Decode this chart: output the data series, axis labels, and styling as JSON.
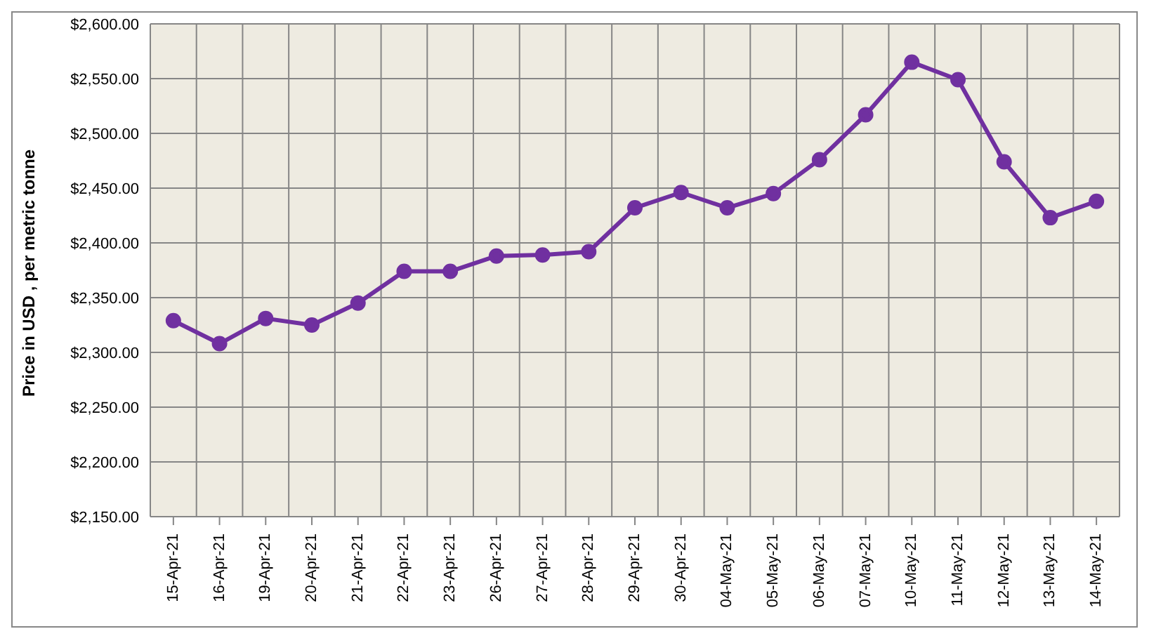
{
  "chart_data": {
    "type": "line",
    "ylabel": "Price in USD , per metric tonne",
    "categories": [
      "15-Apr-21",
      "16-Apr-21",
      "19-Apr-21",
      "20-Apr-21",
      "21-Apr-21",
      "22-Apr-21",
      "23-Apr-21",
      "26-Apr-21",
      "27-Apr-21",
      "28-Apr-21",
      "29-Apr-21",
      "30-Apr-21",
      "04-May-21",
      "05-May-21",
      "06-May-21",
      "07-May-21",
      "10-May-21",
      "11-May-21",
      "12-May-21",
      "13-May-21",
      "14-May-21"
    ],
    "series": [
      {
        "color": "#7030a0",
        "values": [
          2329,
          2308,
          2331,
          2325,
          2345,
          2374,
          2374,
          2388,
          2389,
          2392,
          2432,
          2446,
          2432,
          2445,
          2476,
          2517,
          2565,
          2549,
          2474,
          2423,
          2438
        ]
      }
    ],
    "ylim": [
      2150,
      2600
    ],
    "yticks": [
      {
        "value": 2150,
        "label": "$2,150.00"
      },
      {
        "value": 2200,
        "label": "$2,200.00"
      },
      {
        "value": 2250,
        "label": "$2,250.00"
      },
      {
        "value": 2300,
        "label": "$2,300.00"
      },
      {
        "value": 2350,
        "label": "$2,350.00"
      },
      {
        "value": 2400,
        "label": "$2,400.00"
      },
      {
        "value": 2450,
        "label": "$2,450.00"
      },
      {
        "value": 2500,
        "label": "$2,500.00"
      },
      {
        "value": 2550,
        "label": "$2,550.00"
      },
      {
        "value": 2600,
        "label": "$2,600.00"
      }
    ],
    "grid": true,
    "marker": "circle",
    "line_style": "solid"
  }
}
